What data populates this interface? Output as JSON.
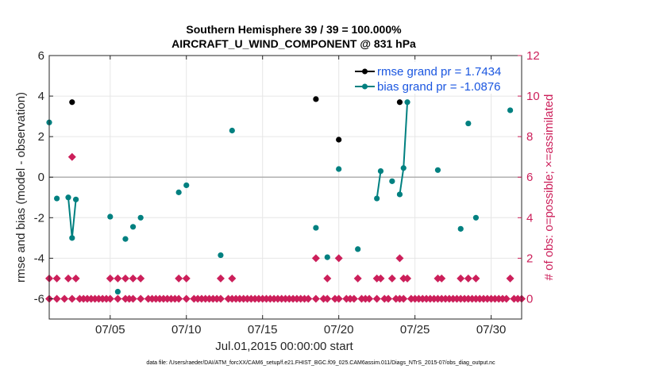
{
  "chart_data": {
    "type": "scatter",
    "title_line1": "Southern Hemisphere 39 / 39 = 100.000%",
    "title_line2": "AIRCRAFT_U_WIND_COMPONENT @ 831 hPa",
    "xlabel": "Jul.01,2015 00:00:00 start",
    "ylabel_left": "rmse and bias (model - observation)",
    "ylabel_right": "# of obs: o=possible; ×=assimilated",
    "footer": "data file: /Users/raeder/DAI/ATM_forcXX/CAM6_setup/f.e21.FHIST_BGC.f09_025.CAM6assim.011/Diags_NTrS_2015-07/obs_diag_output.nc",
    "xlim": [
      1,
      32
    ],
    "ylim_left": [
      -7,
      6
    ],
    "ylim_right": [
      -1,
      12
    ],
    "x_ticks": [
      5,
      10,
      15,
      20,
      25,
      30
    ],
    "x_tick_labels": [
      "07/05",
      "07/10",
      "07/15",
      "07/20",
      "07/25",
      "07/30"
    ],
    "y_left_ticks": [
      -6,
      -4,
      -2,
      0,
      2,
      4,
      6
    ],
    "y_left_tick_labels": [
      "-6",
      "-4",
      "-2",
      "0",
      "2",
      "4",
      "6"
    ],
    "y_right_ticks": [
      0,
      2,
      4,
      6,
      8,
      10,
      12
    ],
    "y_right_tick_labels": [
      "0",
      "2",
      "4",
      "6",
      "8",
      "10",
      "12"
    ],
    "colors": {
      "rmse": "#000000",
      "bias": "#008080",
      "counts": "#cc1f5a",
      "zero_line": "#b0b0b0",
      "legend_text": "#1a56e0"
    },
    "legend": [
      {
        "label": "rmse grand pr = 1.7434",
        "color": "#000000"
      },
      {
        "label": "bias grand pr = -1.0876",
        "color": "#008080"
      }
    ],
    "series": [
      {
        "name": "rmse",
        "axis": "left",
        "points": [
          [
            2.5,
            3.7
          ],
          [
            18.5,
            3.85
          ],
          [
            20.0,
            1.85
          ],
          [
            24.0,
            3.7
          ]
        ]
      },
      {
        "name": "bias",
        "axis": "left",
        "points": [
          [
            1.0,
            2.7
          ],
          [
            1.5,
            -1.05
          ],
          [
            2.25,
            -1.0
          ],
          [
            2.5,
            -3.0
          ],
          [
            2.75,
            -1.1
          ],
          [
            5.0,
            -1.95
          ],
          [
            5.5,
            -5.65
          ],
          [
            6.0,
            -3.05
          ],
          [
            6.5,
            -2.45
          ],
          [
            7.0,
            -2.0
          ],
          [
            9.5,
            -0.75
          ],
          [
            10.0,
            -0.4
          ],
          [
            12.25,
            -3.85
          ],
          [
            13.0,
            2.3
          ],
          [
            18.5,
            -2.5
          ],
          [
            19.25,
            -3.95
          ],
          [
            20.0,
            0.4
          ],
          [
            21.25,
            -3.55
          ],
          [
            22.5,
            -1.05
          ],
          [
            22.75,
            0.3
          ],
          [
            23.5,
            -0.2
          ],
          [
            24.0,
            -0.85
          ],
          [
            24.25,
            0.45
          ],
          [
            24.5,
            3.7
          ],
          [
            26.5,
            0.35
          ],
          [
            28.0,
            -2.55
          ],
          [
            28.5,
            2.65
          ],
          [
            29.0,
            -2.0
          ],
          [
            31.25,
            3.3
          ]
        ]
      },
      {
        "name": "counts",
        "axis": "right",
        "points": [
          [
            1.0,
            1
          ],
          [
            1.5,
            1
          ],
          [
            2.25,
            1
          ],
          [
            2.5,
            7
          ],
          [
            2.75,
            1
          ],
          [
            5.0,
            1
          ],
          [
            5.5,
            1
          ],
          [
            6.0,
            1
          ],
          [
            6.5,
            1
          ],
          [
            7.0,
            1
          ],
          [
            9.5,
            1
          ],
          [
            10.0,
            1
          ],
          [
            12.25,
            1
          ],
          [
            13.0,
            1
          ],
          [
            18.5,
            2
          ],
          [
            19.25,
            1
          ],
          [
            20.0,
            2
          ],
          [
            21.25,
            1
          ],
          [
            22.5,
            1
          ],
          [
            22.75,
            1
          ],
          [
            23.5,
            1
          ],
          [
            24.0,
            2
          ],
          [
            24.25,
            1
          ],
          [
            24.5,
            1
          ],
          [
            26.5,
            1
          ],
          [
            26.75,
            1
          ],
          [
            28.0,
            1
          ],
          [
            28.5,
            1
          ],
          [
            29.0,
            1
          ],
          [
            31.25,
            1
          ],
          [
            1.0,
            0
          ],
          [
            1.5,
            0
          ],
          [
            2.0,
            0
          ],
          [
            2.5,
            0
          ],
          [
            3.0,
            0
          ],
          [
            3.25,
            0
          ],
          [
            3.5,
            0
          ],
          [
            3.75,
            0
          ],
          [
            4.0,
            0
          ],
          [
            4.25,
            0
          ],
          [
            4.5,
            0
          ],
          [
            4.75,
            0
          ],
          [
            5.0,
            0
          ],
          [
            5.5,
            0
          ],
          [
            6.0,
            0
          ],
          [
            6.25,
            0
          ],
          [
            6.5,
            0
          ],
          [
            7.0,
            0
          ],
          [
            7.5,
            0
          ],
          [
            7.75,
            0
          ],
          [
            8.0,
            0
          ],
          [
            8.25,
            0
          ],
          [
            8.5,
            0
          ],
          [
            8.75,
            0
          ],
          [
            9.0,
            0
          ],
          [
            9.25,
            0
          ],
          [
            9.5,
            0
          ],
          [
            10.0,
            0
          ],
          [
            10.5,
            0
          ],
          [
            10.75,
            0
          ],
          [
            11.0,
            0
          ],
          [
            11.25,
            0
          ],
          [
            11.5,
            0
          ],
          [
            11.75,
            0
          ],
          [
            12.0,
            0
          ],
          [
            12.25,
            0
          ],
          [
            12.75,
            0
          ],
          [
            13.0,
            0
          ],
          [
            13.25,
            0
          ],
          [
            13.5,
            0
          ],
          [
            13.75,
            0
          ],
          [
            14.0,
            0
          ],
          [
            14.25,
            0
          ],
          [
            14.5,
            0
          ],
          [
            14.75,
            0
          ],
          [
            15.0,
            0
          ],
          [
            15.25,
            0
          ],
          [
            15.5,
            0
          ],
          [
            15.75,
            0
          ],
          [
            16.0,
            0
          ],
          [
            16.25,
            0
          ],
          [
            16.5,
            0
          ],
          [
            16.75,
            0
          ],
          [
            17.0,
            0
          ],
          [
            17.25,
            0
          ],
          [
            17.5,
            0
          ],
          [
            17.75,
            0
          ],
          [
            18.0,
            0
          ],
          [
            18.5,
            0
          ],
          [
            19.0,
            0
          ],
          [
            19.25,
            0
          ],
          [
            19.75,
            0
          ],
          [
            20.0,
            0
          ],
          [
            20.5,
            0
          ],
          [
            20.75,
            0
          ],
          [
            21.0,
            0
          ],
          [
            21.5,
            0
          ],
          [
            21.75,
            0
          ],
          [
            22.0,
            0
          ],
          [
            22.5,
            0
          ],
          [
            23.0,
            0
          ],
          [
            23.25,
            0
          ],
          [
            23.75,
            0
          ],
          [
            24.0,
            0
          ],
          [
            24.25,
            0
          ],
          [
            24.75,
            0
          ],
          [
            25.0,
            0
          ],
          [
            25.25,
            0
          ],
          [
            25.5,
            0
          ],
          [
            25.75,
            0
          ],
          [
            26.0,
            0
          ],
          [
            26.25,
            0
          ],
          [
            26.5,
            0
          ],
          [
            26.75,
            0
          ],
          [
            27.0,
            0
          ],
          [
            27.25,
            0
          ],
          [
            27.5,
            0
          ],
          [
            27.75,
            0
          ],
          [
            28.0,
            0
          ],
          [
            28.25,
            0
          ],
          [
            28.5,
            0
          ],
          [
            28.75,
            0
          ],
          [
            29.0,
            0
          ],
          [
            29.25,
            0
          ],
          [
            29.5,
            0
          ],
          [
            29.75,
            0
          ],
          [
            30.0,
            0
          ],
          [
            30.25,
            0
          ],
          [
            30.5,
            0
          ],
          [
            30.75,
            0
          ],
          [
            31.0,
            0
          ],
          [
            31.5,
            0
          ],
          [
            31.75,
            0
          ],
          [
            32.0,
            0
          ]
        ]
      }
    ],
    "bias_segments": [
      [
        [
          2.25,
          -1.0
        ],
        [
          2.5,
          -3.0
        ],
        [
          2.75,
          -1.1
        ]
      ],
      [
        [
          22.5,
          -1.05
        ],
        [
          22.75,
          0.3
        ]
      ],
      [
        [
          24.0,
          -0.85
        ],
        [
          24.25,
          0.45
        ],
        [
          24.5,
          3.7
        ]
      ]
    ]
  }
}
